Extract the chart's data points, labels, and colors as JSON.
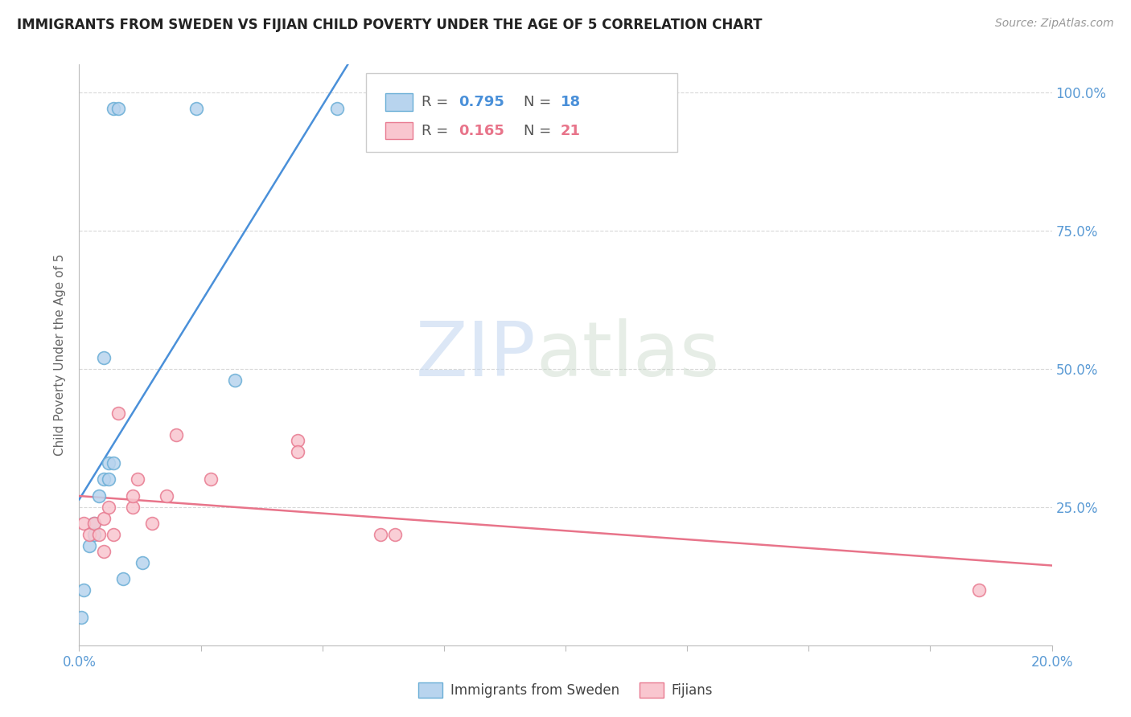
{
  "title": "IMMIGRANTS FROM SWEDEN VS FIJIAN CHILD POVERTY UNDER THE AGE OF 5 CORRELATION CHART",
  "source": "Source: ZipAtlas.com",
  "ylabel": "Child Poverty Under the Age of 5",
  "xlim": [
    0.0,
    0.2
  ],
  "ylim": [
    0.0,
    1.05
  ],
  "yticks": [
    0.0,
    0.25,
    0.5,
    0.75,
    1.0
  ],
  "xticks": [
    0.0,
    0.025,
    0.05,
    0.075,
    0.1,
    0.125,
    0.15,
    0.175,
    0.2
  ],
  "xtick_labels": [
    "0.0%",
    "",
    "",
    "",
    "",
    "",
    "",
    "",
    "20.0%"
  ],
  "sweden_color": "#b8d4ee",
  "sweden_edge_color": "#6aaed6",
  "fijian_color": "#f9c6cf",
  "fijian_edge_color": "#e87a90",
  "sweden_line_color": "#4a90d9",
  "fijian_line_color": "#e8748a",
  "R_sweden": 0.795,
  "N_sweden": 18,
  "R_fijian": 0.165,
  "N_fijian": 21,
  "sweden_x": [
    0.0005,
    0.001,
    0.002,
    0.003,
    0.003,
    0.004,
    0.005,
    0.005,
    0.006,
    0.006,
    0.007,
    0.007,
    0.008,
    0.009,
    0.013,
    0.024,
    0.032,
    0.053
  ],
  "sweden_y": [
    0.05,
    0.1,
    0.18,
    0.22,
    0.2,
    0.27,
    0.52,
    0.3,
    0.3,
    0.33,
    0.33,
    0.97,
    0.97,
    0.12,
    0.15,
    0.97,
    0.48,
    0.97
  ],
  "fijian_x": [
    0.001,
    0.002,
    0.003,
    0.004,
    0.005,
    0.005,
    0.006,
    0.007,
    0.008,
    0.011,
    0.011,
    0.012,
    0.015,
    0.018,
    0.02,
    0.027,
    0.045,
    0.045,
    0.062,
    0.065,
    0.185
  ],
  "fijian_y": [
    0.22,
    0.2,
    0.22,
    0.2,
    0.17,
    0.23,
    0.25,
    0.2,
    0.42,
    0.25,
    0.27,
    0.3,
    0.22,
    0.27,
    0.38,
    0.3,
    0.37,
    0.35,
    0.2,
    0.2,
    0.1
  ],
  "marker_size": 130,
  "watermark_zip": "ZIP",
  "watermark_atlas": "atlas",
  "background_color": "#ffffff",
  "grid_color": "#d8d8d8",
  "axis_color": "#bbbbbb",
  "tick_color": "#5b9bd5",
  "title_fontsize": 12,
  "label_fontsize": 11,
  "legend_fontsize": 12
}
